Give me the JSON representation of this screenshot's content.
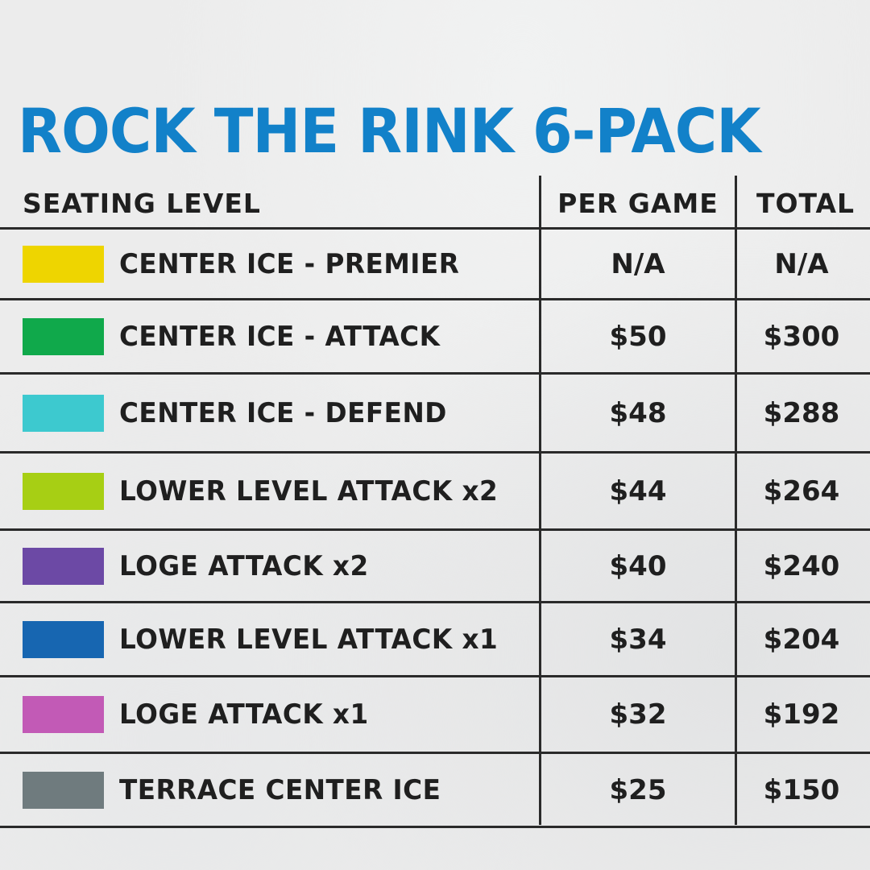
{
  "title": "ROCK THE RINK 6-PACK",
  "headers": {
    "seating_level": "SEATING LEVEL",
    "per_game": "PER GAME",
    "total": "TOTAL"
  },
  "rows": [
    {
      "label": "CENTER ICE - PREMIER",
      "per_game": "N/A",
      "total": "N/A",
      "color": "#eed500"
    },
    {
      "label": "CENTER ICE - ATTACK",
      "per_game": "$50",
      "total": "$300",
      "color": "#10a94b"
    },
    {
      "label": "CENTER ICE - DEFEND",
      "per_game": "$48",
      "total": "$288",
      "color": "#3dc9cf"
    },
    {
      "label": "LOWER LEVEL ATTACK x2",
      "per_game": "$44",
      "total": "$264",
      "color": "#a7cf14"
    },
    {
      "label": "LOGE ATTACK x2",
      "per_game": "$40",
      "total": "$240",
      "color": "#6c49a5"
    },
    {
      "label": "LOWER LEVEL ATTACK x1",
      "per_game": "$34",
      "total": "$204",
      "color": "#1766b1"
    },
    {
      "label": "LOGE ATTACK x1",
      "per_game": "$32",
      "total": "$192",
      "color": "#c25ab6"
    },
    {
      "label": "TERRACE CENTER ICE",
      "per_game": "$25",
      "total": "$150",
      "color": "#6f7b7e"
    }
  ],
  "colors": {
    "title": "#1281c9",
    "text": "#1f1f1f",
    "lines": "#2a2a2a",
    "background": "#ececec"
  }
}
